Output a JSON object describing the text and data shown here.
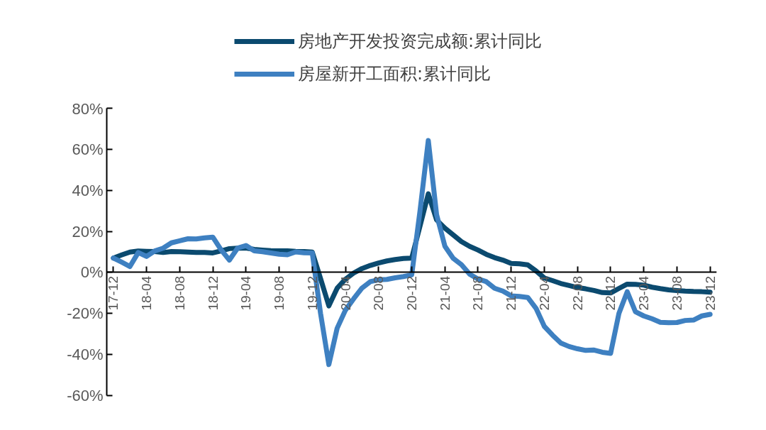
{
  "chart_data": {
    "type": "line",
    "categories": [
      "17-12",
      null,
      null,
      null,
      "18-04",
      null,
      null,
      null,
      "18-08",
      null,
      null,
      null,
      "18-12",
      null,
      null,
      null,
      "19-04",
      null,
      null,
      null,
      "19-08",
      null,
      null,
      null,
      "19-12",
      null,
      null,
      null,
      "20-04",
      null,
      null,
      null,
      "20-08",
      null,
      null,
      null,
      "20-12",
      null,
      null,
      null,
      "21-04",
      null,
      null,
      null,
      "21-08",
      null,
      null,
      null,
      "21-12",
      null,
      null,
      null,
      "22-04",
      null,
      null,
      null,
      "22-08",
      null,
      null,
      null,
      "22-12",
      null,
      null,
      null,
      "23-04",
      null,
      null,
      null,
      "23-08",
      null,
      null,
      null,
      "23-12"
    ],
    "series": [
      {
        "name": "房地产开发投资完成额:累计同比",
        "color": "#0b4a6f",
        "values": [
          7.0,
          8.5,
          9.9,
          10.4,
          10.3,
          10.2,
          9.7,
          10.2,
          10.1,
          9.9,
          9.7,
          9.7,
          9.5,
          10.5,
          11.6,
          11.8,
          11.9,
          11.2,
          10.9,
          10.6,
          10.5,
          10.5,
          10.3,
          10.2,
          9.9,
          -3,
          -16.3,
          -7.7,
          -3.3,
          -0.3,
          1.9,
          3.4,
          4.6,
          5.6,
          6.3,
          6.8,
          7.0,
          22.6,
          38.3,
          25.6,
          21.6,
          18.3,
          15.0,
          12.7,
          10.9,
          8.8,
          7.2,
          6.0,
          4.4,
          4.2,
          3.7,
          0.7,
          -2.7,
          -4.0,
          -5.4,
          -6.4,
          -7.4,
          -8.0,
          -8.8,
          -9.8,
          -10.0,
          -7.8,
          -5.7,
          -5.8,
          -6.2,
          -7.2,
          -7.9,
          -8.5,
          -8.8,
          -9.1,
          -9.3,
          -9.4,
          -9.6
        ]
      },
      {
        "name": "房屋新开工面积:累计同比",
        "color": "#3e80c1",
        "values": [
          7.0,
          5.0,
          2.9,
          9.7,
          7.8,
          10.5,
          11.8,
          14.4,
          15.4,
          16.4,
          16.3,
          16.8,
          17.2,
          11.0,
          6.0,
          11.9,
          13.1,
          10.5,
          10.1,
          9.5,
          8.9,
          8.6,
          10.0,
          9.6,
          9.5,
          -20,
          -44.9,
          -27.2,
          -18.4,
          -12.8,
          -7.6,
          -4.5,
          -3.6,
          -3.4,
          -2.6,
          -2.0,
          -1.2,
          30,
          64.3,
          28.2,
          12.8,
          6.9,
          3.8,
          -0.9,
          -3.2,
          -4.5,
          -7.7,
          -9.1,
          -11.4,
          -11.7,
          -12.2,
          -17.5,
          -26.3,
          -30.6,
          -34.4,
          -36.1,
          -37.2,
          -38.0,
          -37.8,
          -38.9,
          -39.4,
          -20,
          -9.4,
          -19.2,
          -21.2,
          -22.6,
          -24.3,
          -24.5,
          -24.4,
          -23.4,
          -23.2,
          -21.2,
          -20.4
        ]
      }
    ],
    "ylim": [
      -60,
      80
    ],
    "yticks": [
      {
        "value": -60,
        "label": "-60%"
      },
      {
        "value": -40,
        "label": "-40%"
      },
      {
        "value": -20,
        "label": "-20%"
      },
      {
        "value": 0,
        "label": "0%"
      },
      {
        "value": 20,
        "label": "20%"
      },
      {
        "value": 40,
        "label": "40%"
      },
      {
        "value": 60,
        "label": "60%"
      },
      {
        "value": 80,
        "label": "80%"
      }
    ],
    "grid": false,
    "legend": "top"
  }
}
